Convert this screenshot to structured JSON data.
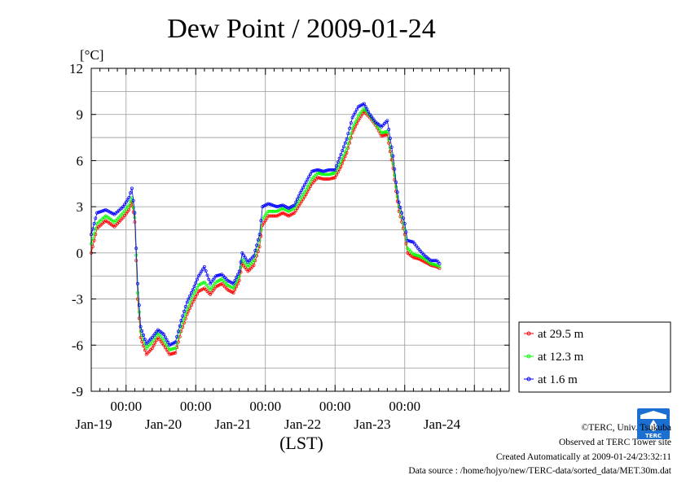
{
  "chart_data": {
    "type": "line",
    "title": "Dew Point / 2009-01-24",
    "ylabel": "[°C]",
    "xlabel": "(LST)",
    "ylim": [
      -9,
      12
    ],
    "yticks": [
      "12",
      "9",
      "6",
      "3",
      "0",
      "-3",
      "-6",
      "-9"
    ],
    "x_time_labels": [
      "00:00",
      "00:00",
      "00:00",
      "00:00",
      "00:00"
    ],
    "x_date_labels": [
      "Jan-19",
      "Jan-20",
      "Jan-21",
      "Jan-22",
      "Jan-23",
      "Jan-24"
    ],
    "x_unit": "hours from 2009-01-18 00:00 LST",
    "xlim": [
      12,
      156
    ],
    "grid": true,
    "legend_position": "right",
    "series": [
      {
        "name": "at 29.5 m",
        "color": "#ff0000",
        "points": [
          [
            12,
            0.0
          ],
          [
            14,
            1.6
          ],
          [
            17,
            2.1
          ],
          [
            20,
            1.7
          ],
          [
            23,
            2.3
          ],
          [
            25,
            2.8
          ],
          [
            26,
            3.3
          ],
          [
            27,
            2.0
          ],
          [
            28,
            -3.0
          ],
          [
            29,
            -5.5
          ],
          [
            31,
            -6.6
          ],
          [
            33,
            -6.2
          ],
          [
            35,
            -5.5
          ],
          [
            37,
            -6.0
          ],
          [
            39,
            -6.6
          ],
          [
            41,
            -6.5
          ],
          [
            43,
            -5.1
          ],
          [
            45,
            -4.0
          ],
          [
            47,
            -3.2
          ],
          [
            49,
            -2.5
          ],
          [
            51,
            -2.3
          ],
          [
            53,
            -2.7
          ],
          [
            55,
            -2.2
          ],
          [
            57,
            -2.0
          ],
          [
            59,
            -2.4
          ],
          [
            61,
            -2.6
          ],
          [
            63,
            -1.8
          ],
          [
            64,
            -0.7
          ],
          [
            66,
            -1.2
          ],
          [
            68,
            -0.8
          ],
          [
            70,
            0.4
          ],
          [
            71,
            1.8
          ],
          [
            73,
            2.4
          ],
          [
            76,
            2.4
          ],
          [
            78,
            2.6
          ],
          [
            80,
            2.4
          ],
          [
            82,
            2.6
          ],
          [
            84,
            3.2
          ],
          [
            86,
            3.8
          ],
          [
            88,
            4.5
          ],
          [
            90,
            4.9
          ],
          [
            92,
            4.8
          ],
          [
            94,
            4.8
          ],
          [
            96,
            4.9
          ],
          [
            98,
            5.6
          ],
          [
            100,
            6.5
          ],
          [
            102,
            7.8
          ],
          [
            104,
            8.6
          ],
          [
            106,
            9.2
          ],
          [
            108,
            8.8
          ],
          [
            110,
            8.3
          ],
          [
            112,
            7.6
          ],
          [
            114,
            7.7
          ],
          [
            116,
            5.5
          ],
          [
            117,
            4.0
          ],
          [
            118,
            2.7
          ],
          [
            119,
            2.0
          ],
          [
            120,
            1.2
          ],
          [
            121,
            0.0
          ],
          [
            123,
            -0.3
          ],
          [
            125,
            -0.4
          ],
          [
            127,
            -0.6
          ],
          [
            129,
            -0.8
          ],
          [
            131,
            -0.9
          ],
          [
            132,
            -1.0
          ]
        ]
      },
      {
        "name": "at 12.3 m",
        "color": "#00ff00",
        "points": [
          [
            12,
            0.6
          ],
          [
            14,
            1.9
          ],
          [
            17,
            2.4
          ],
          [
            20,
            2.0
          ],
          [
            23,
            2.6
          ],
          [
            25,
            3.1
          ],
          [
            26,
            3.6
          ],
          [
            27,
            2.3
          ],
          [
            28,
            -2.6
          ],
          [
            29,
            -5.1
          ],
          [
            31,
            -6.2
          ],
          [
            33,
            -5.8
          ],
          [
            35,
            -5.2
          ],
          [
            37,
            -5.7
          ],
          [
            39,
            -6.3
          ],
          [
            41,
            -6.2
          ],
          [
            43,
            -4.8
          ],
          [
            45,
            -3.7
          ],
          [
            47,
            -2.8
          ],
          [
            49,
            -2.1
          ],
          [
            51,
            -1.9
          ],
          [
            53,
            -2.4
          ],
          [
            55,
            -1.9
          ],
          [
            57,
            -1.7
          ],
          [
            59,
            -2.1
          ],
          [
            61,
            -2.3
          ],
          [
            63,
            -1.5
          ],
          [
            64,
            -0.4
          ],
          [
            66,
            -0.9
          ],
          [
            68,
            -0.5
          ],
          [
            70,
            0.8
          ],
          [
            71,
            2.2
          ],
          [
            73,
            2.7
          ],
          [
            76,
            2.7
          ],
          [
            78,
            2.9
          ],
          [
            80,
            2.7
          ],
          [
            82,
            2.9
          ],
          [
            84,
            3.5
          ],
          [
            86,
            4.1
          ],
          [
            88,
            4.8
          ],
          [
            90,
            5.2
          ],
          [
            92,
            5.1
          ],
          [
            94,
            5.1
          ],
          [
            96,
            5.2
          ],
          [
            98,
            5.9
          ],
          [
            100,
            6.8
          ],
          [
            102,
            8.1
          ],
          [
            104,
            8.9
          ],
          [
            106,
            9.4
          ],
          [
            108,
            8.9
          ],
          [
            110,
            8.4
          ],
          [
            112,
            7.8
          ],
          [
            114,
            7.9
          ],
          [
            116,
            5.8
          ],
          [
            117,
            4.3
          ],
          [
            118,
            3.0
          ],
          [
            119,
            2.3
          ],
          [
            120,
            1.5
          ],
          [
            121,
            0.3
          ],
          [
            123,
            -0.1
          ],
          [
            125,
            -0.2
          ],
          [
            127,
            -0.4
          ],
          [
            129,
            -0.7
          ],
          [
            131,
            -0.8
          ],
          [
            132,
            -0.9
          ]
        ]
      },
      {
        "name": "at 1.6 m",
        "color": "#0000ff",
        "points": [
          [
            12,
            1.2
          ],
          [
            14,
            2.6
          ],
          [
            17,
            2.8
          ],
          [
            20,
            2.5
          ],
          [
            23,
            3.0
          ],
          [
            25,
            3.6
          ],
          [
            26,
            4.2
          ],
          [
            27,
            2.6
          ],
          [
            28,
            -2.0
          ],
          [
            29,
            -4.8
          ],
          [
            31,
            -5.9
          ],
          [
            33,
            -5.5
          ],
          [
            35,
            -5.0
          ],
          [
            37,
            -5.3
          ],
          [
            39,
            -6.0
          ],
          [
            41,
            -5.8
          ],
          [
            43,
            -4.4
          ],
          [
            45,
            -3.2
          ],
          [
            47,
            -2.4
          ],
          [
            49,
            -1.5
          ],
          [
            51,
            -0.9
          ],
          [
            53,
            -2.0
          ],
          [
            55,
            -1.5
          ],
          [
            57,
            -1.4
          ],
          [
            59,
            -1.8
          ],
          [
            61,
            -2.0
          ],
          [
            63,
            -1.2
          ],
          [
            64,
            0.0
          ],
          [
            66,
            -0.6
          ],
          [
            68,
            -0.2
          ],
          [
            70,
            1.2
          ],
          [
            71,
            3.0
          ],
          [
            73,
            3.2
          ],
          [
            76,
            3.0
          ],
          [
            78,
            3.1
          ],
          [
            80,
            2.9
          ],
          [
            82,
            3.1
          ],
          [
            84,
            3.9
          ],
          [
            86,
            4.6
          ],
          [
            88,
            5.3
          ],
          [
            90,
            5.4
          ],
          [
            92,
            5.3
          ],
          [
            94,
            5.4
          ],
          [
            96,
            5.4
          ],
          [
            98,
            6.4
          ],
          [
            100,
            7.4
          ],
          [
            102,
            8.8
          ],
          [
            104,
            9.5
          ],
          [
            106,
            9.7
          ],
          [
            108,
            9.0
          ],
          [
            110,
            8.5
          ],
          [
            112,
            8.2
          ],
          [
            114,
            8.6
          ],
          [
            116,
            6.3
          ],
          [
            117,
            4.6
          ],
          [
            118,
            3.3
          ],
          [
            119,
            2.6
          ],
          [
            120,
            1.9
          ],
          [
            121,
            0.8
          ],
          [
            123,
            0.7
          ],
          [
            125,
            0.2
          ],
          [
            127,
            -0.2
          ],
          [
            129,
            -0.5
          ],
          [
            131,
            -0.5
          ],
          [
            132,
            -0.7
          ]
        ]
      }
    ]
  },
  "credits": {
    "copyright": "©TERC, Univ. Tsukuba",
    "observed": "Observed at TERC Tower site",
    "created": "Created Automatically at 2009-01-24/23:32:11",
    "source": "Data source : /home/hojyo/new/TERC-data/sorted_data/MET.30m.dat"
  },
  "logo": {
    "text": "TERC",
    "color": "#1a6fd0"
  }
}
